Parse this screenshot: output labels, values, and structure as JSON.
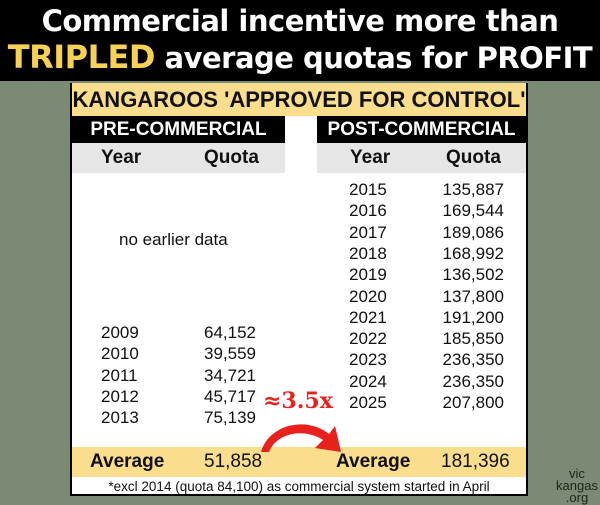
{
  "banner": {
    "line1": "Commercial incentive more than",
    "highlight": "TRIPLED",
    "line2_rest": " average quotas for PROFIT"
  },
  "table": {
    "title": "KANGAROOS 'APPROVED FOR CONTROL'",
    "pre": {
      "heading": "PRE-COMMERCIAL",
      "col_year": "Year",
      "col_quota": "Quota",
      "no_data_note": "no earlier data",
      "rows": [
        {
          "year": "2009",
          "quota": "64,152"
        },
        {
          "year": "2010",
          "quota": "39,559"
        },
        {
          "year": "2011",
          "quota": "34,721"
        },
        {
          "year": "2012",
          "quota": "45,717"
        },
        {
          "year": "2013",
          "quota": "75,139"
        }
      ],
      "average_label": "Average",
      "average_value": "51,858"
    },
    "post": {
      "heading": "POST-COMMERCIAL",
      "col_year": "Year",
      "col_quota": "Quota",
      "rows": [
        {
          "year": "2015",
          "quota": "135,887"
        },
        {
          "year": "2016",
          "quota": "169,544"
        },
        {
          "year": "2017",
          "quota": "189,086"
        },
        {
          "year": "2018",
          "quota": "168,992"
        },
        {
          "year": "2019",
          "quota": "136,502"
        },
        {
          "year": "2020",
          "quota": "137,800"
        },
        {
          "year": "2021",
          "quota": "191,200"
        },
        {
          "year": "2022",
          "quota": "185,850"
        },
        {
          "year": "2023",
          "quota": "236,350"
        },
        {
          "year": "2024",
          "quota": "236,350"
        },
        {
          "year": "2025",
          "quota": "207,800"
        }
      ],
      "average_label": "Average",
      "average_value": "181,396"
    },
    "footnote": "*excl 2014 (quota 84,100) as commercial system started in April"
  },
  "annotation": {
    "multiplier": "≈3.5x",
    "color": "#e8211c"
  },
  "logo": {
    "line1": "vic",
    "line2": "kangas",
    "line3": ".org"
  }
}
